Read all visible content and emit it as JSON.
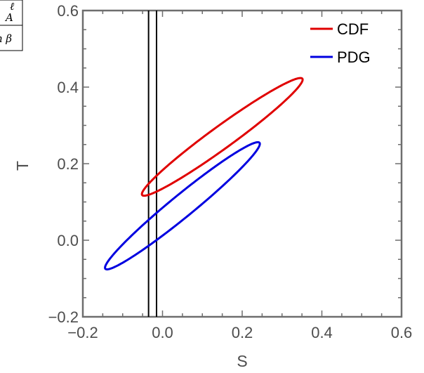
{
  "chart_data": {
    "type": "scatter",
    "title": "",
    "xlabel": "S",
    "ylabel": "T",
    "xlim": [
      -0.2,
      0.6
    ],
    "ylim": [
      -0.2,
      0.6
    ],
    "xticks": [
      "−0.2",
      "0.0",
      "0.2",
      "0.4",
      "0.6"
    ],
    "xtick_values": [
      -0.2,
      0.0,
      0.2,
      0.4,
      0.6
    ],
    "yticks": [
      "−0.2",
      "0.0",
      "0.2",
      "0.4",
      "0.6"
    ],
    "ytick_values": [
      -0.2,
      0.0,
      0.2,
      0.4,
      0.6
    ],
    "grid": false,
    "legend_position": "top-right",
    "series": [
      {
        "name": "CDF",
        "color": "#e00000",
        "shape": "ellipse",
        "center": [
          0.15,
          0.27
        ],
        "extreme_points": [
          [
            -0.03,
            0.13
          ],
          [
            0.34,
            0.41
          ],
          [
            -0.02,
            0.12
          ],
          [
            0.32,
            0.42
          ]
        ],
        "major_semi_axis": 0.252,
        "minor_semi_axis": 0.0288,
        "angle_deg": 37.1
      },
      {
        "name": "PDG",
        "color": "#0000e0",
        "shape": "ellipse",
        "center": [
          0.05,
          0.09
        ],
        "extreme_points": [
          [
            -0.14,
            -0.07
          ],
          [
            0.24,
            0.25
          ],
          [
            -0.13,
            -0.08
          ],
          [
            0.22,
            0.26
          ]
        ],
        "major_semi_axis": 0.254,
        "minor_semi_axis": 0.0288,
        "angle_deg": 40.4
      }
    ],
    "vertical_lines": [
      {
        "x": -0.035,
        "color": "#000000"
      },
      {
        "x": -0.015,
        "color": "#000000"
      }
    ],
    "corner_labels": [
      "ℓ",
      "A",
      "n β"
    ]
  }
}
